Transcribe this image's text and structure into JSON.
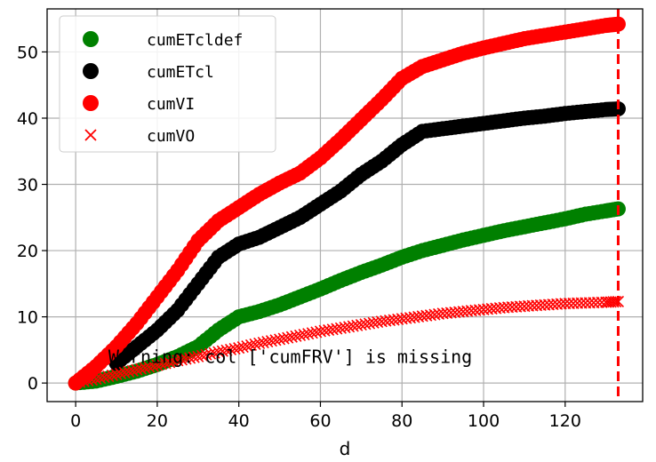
{
  "chart_data": {
    "type": "scatter",
    "xlabel": "d",
    "ylabel": "",
    "xlim": [
      -7,
      139
    ],
    "ylim": [
      -2.8,
      56.5
    ],
    "xticks": [
      0,
      20,
      40,
      60,
      80,
      100,
      120
    ],
    "yticks": [
      0,
      10,
      20,
      30,
      40,
      50
    ],
    "grid": true,
    "legend_position": "top-left",
    "vline_x": 133,
    "vline_color": "#ff0000",
    "annotation": "Warning: col ['cumFRV'] is missing",
    "annotation_pos": [
      8,
      4
    ],
    "series": [
      {
        "name": "cumETcldef",
        "marker": "circle",
        "color": "#008000",
        "points": [
          [
            0,
            0
          ],
          [
            5,
            0.3
          ],
          [
            10,
            1
          ],
          [
            15,
            1.8
          ],
          [
            20,
            2.8
          ],
          [
            25,
            4
          ],
          [
            30,
            5.5
          ],
          [
            35,
            8
          ],
          [
            40,
            10
          ],
          [
            45,
            10.8
          ],
          [
            50,
            11.8
          ],
          [
            55,
            13
          ],
          [
            60,
            14.2
          ],
          [
            65,
            15.5
          ],
          [
            70,
            16.7
          ],
          [
            75,
            17.8
          ],
          [
            80,
            19
          ],
          [
            85,
            20
          ],
          [
            90,
            20.8
          ],
          [
            95,
            21.6
          ],
          [
            100,
            22.3
          ],
          [
            105,
            23
          ],
          [
            110,
            23.6
          ],
          [
            115,
            24.2
          ],
          [
            120,
            24.8
          ],
          [
            125,
            25.5
          ],
          [
            130,
            26
          ],
          [
            133,
            26.3
          ]
        ]
      },
      {
        "name": "cumETcl",
        "marker": "circle",
        "color": "#000000",
        "points": [
          [
            10,
            3
          ],
          [
            15,
            5.5
          ],
          [
            20,
            8
          ],
          [
            25,
            11
          ],
          [
            30,
            15
          ],
          [
            35,
            19
          ],
          [
            40,
            21
          ],
          [
            45,
            22
          ],
          [
            50,
            23.5
          ],
          [
            55,
            25
          ],
          [
            60,
            27
          ],
          [
            65,
            29
          ],
          [
            70,
            31.5
          ],
          [
            75,
            33.5
          ],
          [
            80,
            36
          ],
          [
            85,
            38
          ],
          [
            90,
            38.4
          ],
          [
            95,
            38.8
          ],
          [
            100,
            39.2
          ],
          [
            105,
            39.6
          ],
          [
            110,
            40
          ],
          [
            115,
            40.3
          ],
          [
            120,
            40.7
          ],
          [
            125,
            41
          ],
          [
            130,
            41.3
          ],
          [
            133,
            41.4
          ]
        ]
      },
      {
        "name": "cumVI",
        "marker": "circle",
        "color": "#ff0000",
        "points": [
          [
            0,
            0
          ],
          [
            5,
            2.5
          ],
          [
            10,
            5.5
          ],
          [
            15,
            9
          ],
          [
            20,
            13
          ],
          [
            25,
            17
          ],
          [
            30,
            21.5
          ],
          [
            35,
            24.5
          ],
          [
            40,
            26.5
          ],
          [
            45,
            28.5
          ],
          [
            50,
            30.2
          ],
          [
            55,
            31.7
          ],
          [
            60,
            34
          ],
          [
            65,
            36.8
          ],
          [
            70,
            39.8
          ],
          [
            75,
            42.8
          ],
          [
            80,
            46
          ],
          [
            85,
            47.8
          ],
          [
            90,
            48.8
          ],
          [
            95,
            49.8
          ],
          [
            100,
            50.6
          ],
          [
            105,
            51.3
          ],
          [
            110,
            52
          ],
          [
            115,
            52.5
          ],
          [
            120,
            53
          ],
          [
            125,
            53.5
          ],
          [
            130,
            54
          ],
          [
            133,
            54.2
          ]
        ]
      },
      {
        "name": "cumVO",
        "marker": "x",
        "color": "#ff0000",
        "points": [
          [
            0,
            0
          ],
          [
            5,
            0.6
          ],
          [
            10,
            1.3
          ],
          [
            15,
            2
          ],
          [
            20,
            2.7
          ],
          [
            25,
            3.4
          ],
          [
            30,
            4
          ],
          [
            35,
            4.7
          ],
          [
            40,
            5.3
          ],
          [
            45,
            6
          ],
          [
            50,
            6.6
          ],
          [
            55,
            7.2
          ],
          [
            60,
            7.8
          ],
          [
            65,
            8.3
          ],
          [
            70,
            8.8
          ],
          [
            75,
            9.3
          ],
          [
            80,
            9.7
          ],
          [
            85,
            10.1
          ],
          [
            90,
            10.5
          ],
          [
            95,
            10.8
          ],
          [
            100,
            11.1
          ],
          [
            105,
            11.4
          ],
          [
            110,
            11.6
          ],
          [
            115,
            11.8
          ],
          [
            120,
            12
          ],
          [
            125,
            12.1
          ],
          [
            130,
            12.2
          ],
          [
            133,
            12.3
          ]
        ]
      }
    ]
  }
}
